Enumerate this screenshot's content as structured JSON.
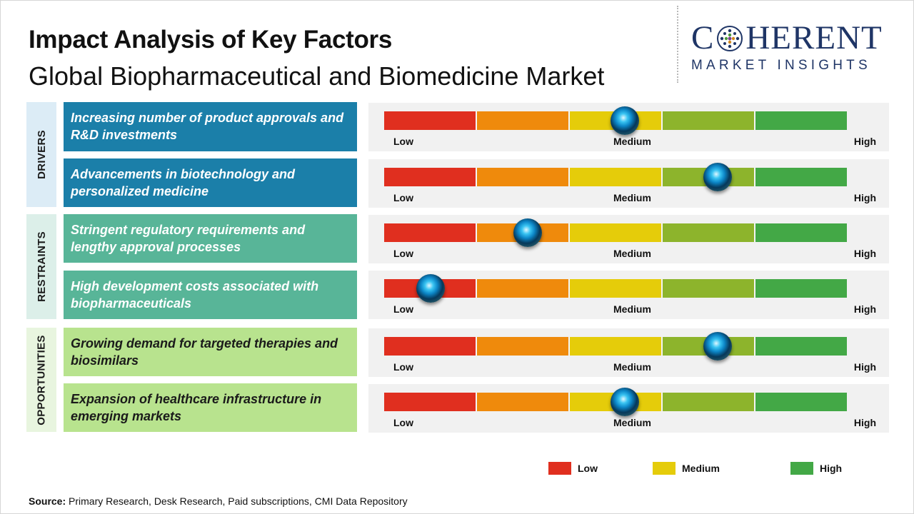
{
  "header": {
    "title": "Impact Analysis of Key Factors",
    "subtitle": "Global Biopharmaceutical and Biomedicine Market"
  },
  "logo": {
    "main_left": "C",
    "main_right": "HERENT",
    "sub": "MARKET INSIGHTS",
    "color": "#1f3566"
  },
  "scale": {
    "low_label": "Low",
    "medium_label": "Medium",
    "high_label": "High",
    "segment_colors": [
      "#e02f1f",
      "#ef8a0c",
      "#e5cc0a",
      "#8db42c",
      "#43a846"
    ]
  },
  "groups": [
    {
      "label": "DRIVERS",
      "factors": [
        {
          "text": "Increasing number of product approvals and R&D investments",
          "impact": 0.52
        },
        {
          "text": "Advancements in biotechnology and personalized medicine",
          "impact": 0.72
        }
      ]
    },
    {
      "label": "RESTRAINTS",
      "factors": [
        {
          "text": "Stringent regulatory requirements and lengthy approval processes",
          "impact": 0.31
        },
        {
          "text": "High development costs associated with biopharmaceuticals",
          "impact": 0.1
        }
      ]
    },
    {
      "label": "OPPORTUNITIES",
      "factors": [
        {
          "text": "Growing demand for targeted therapies and biosimilars",
          "impact": 0.72
        },
        {
          "text": "Expansion of healthcare infrastructure in emerging markets",
          "impact": 0.52
        }
      ]
    }
  ],
  "legend": [
    {
      "label": "Low",
      "color": "#e02f1f"
    },
    {
      "label": "Medium",
      "color": "#e5cc0a"
    },
    {
      "label": "High",
      "color": "#43a846"
    }
  ],
  "source": {
    "prefix": "Source:",
    "text": " Primary Research, Desk Research, Paid subscriptions, CMI Data Repository"
  }
}
